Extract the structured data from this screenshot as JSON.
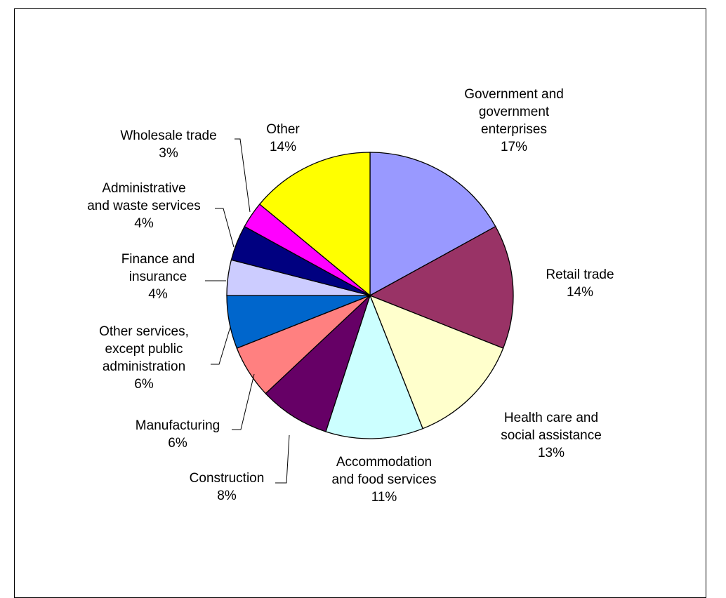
{
  "chart_data": {
    "type": "pie",
    "title": "",
    "slices": [
      {
        "label": [
          "Government and",
          "government",
          "enterprises"
        ],
        "pct_text": "17%",
        "value": 17,
        "color": "#9999ff"
      },
      {
        "label": [
          "Retail trade"
        ],
        "pct_text": "14%",
        "value": 14,
        "color": "#993366"
      },
      {
        "label": [
          "Health care and",
          "social assistance"
        ],
        "pct_text": "13%",
        "value": 13,
        "color": "#ffffcc"
      },
      {
        "label": [
          "Accommodation",
          "and food services"
        ],
        "pct_text": "11%",
        "value": 11,
        "color": "#ccffff"
      },
      {
        "label": [
          "Construction"
        ],
        "pct_text": "8%",
        "value": 8,
        "color": "#660066"
      },
      {
        "label": [
          "Manufacturing"
        ],
        "pct_text": "6%",
        "value": 6,
        "color": "#ff8080"
      },
      {
        "label": [
          "Other services,",
          "except public",
          "administration"
        ],
        "pct_text": "6%",
        "value": 6,
        "color": "#0066cc"
      },
      {
        "label": [
          "Finance and",
          "insurance"
        ],
        "pct_text": "4%",
        "value": 4,
        "color": "#ccccff"
      },
      {
        "label": [
          "Administrative",
          "and waste services"
        ],
        "pct_text": "4%",
        "value": 4,
        "color": "#000080"
      },
      {
        "label": [
          "Wholesale trade"
        ],
        "pct_text": "3%",
        "value": 3,
        "color": "#ff00ff"
      },
      {
        "label": [
          "Other"
        ],
        "pct_text": "14%",
        "value": 14,
        "color": "#ffff00"
      }
    ]
  }
}
